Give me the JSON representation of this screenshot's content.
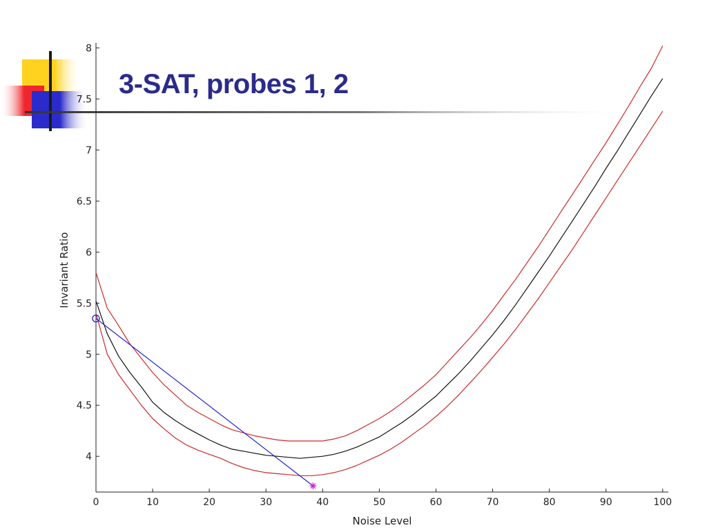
{
  "slide": {
    "title": "3-SAT, probes 1, 2",
    "accent_colors": {
      "title": "#2B2B8C",
      "decor_yellow": "#FFD21F",
      "decor_red": "#F0262E",
      "decor_blue": "#2B2BCC",
      "rule_line": "#5A5A5A"
    }
  },
  "chart_data": {
    "type": "line",
    "title": "",
    "xlabel": "Noise Level",
    "ylabel": "Invariant Ratio",
    "xlim": [
      0,
      101
    ],
    "ylim": [
      3.65,
      8.05
    ],
    "xticks": [
      0,
      10,
      20,
      30,
      40,
      50,
      60,
      70,
      80,
      90,
      100
    ],
    "yticks": [
      4,
      4.5,
      5,
      5.5,
      6,
      6.5,
      7,
      7.5,
      8
    ],
    "grid": false,
    "series": [
      {
        "color": "#cc2a2a",
        "style": "solid",
        "x": [
          0,
          2,
          4,
          6,
          8,
          10,
          12,
          14,
          16,
          18,
          20,
          22,
          24,
          26,
          28,
          30,
          32,
          34,
          36,
          38,
          40,
          42,
          44,
          46,
          48,
          50,
          52,
          54,
          56,
          58,
          60,
          62,
          64,
          66,
          68,
          70,
          72,
          74,
          76,
          78,
          80,
          82,
          84,
          86,
          88,
          90,
          92,
          94,
          96,
          98,
          100
        ],
        "y": [
          5.8,
          5.45,
          5.28,
          5.1,
          4.96,
          4.82,
          4.7,
          4.6,
          4.5,
          4.43,
          4.37,
          4.31,
          4.26,
          4.23,
          4.2,
          4.18,
          4.16,
          4.15,
          4.15,
          4.15,
          4.15,
          4.17,
          4.2,
          4.25,
          4.31,
          4.37,
          4.44,
          4.52,
          4.61,
          4.7,
          4.8,
          4.92,
          5.04,
          5.16,
          5.29,
          5.43,
          5.58,
          5.73,
          5.89,
          6.05,
          6.22,
          6.39,
          6.56,
          6.73,
          6.9,
          7.07,
          7.25,
          7.43,
          7.62,
          7.8,
          8.02
        ]
      },
      {
        "color": "#111111",
        "style": "solid",
        "x": [
          0,
          2,
          4,
          6,
          8,
          10,
          12,
          14,
          16,
          18,
          20,
          22,
          24,
          26,
          28,
          30,
          32,
          34,
          36,
          38,
          40,
          42,
          44,
          46,
          48,
          50,
          52,
          54,
          56,
          58,
          60,
          62,
          64,
          66,
          68,
          70,
          72,
          74,
          76,
          78,
          80,
          82,
          84,
          86,
          88,
          90,
          92,
          94,
          96,
          98,
          100
        ],
        "y": [
          5.52,
          5.2,
          4.98,
          4.82,
          4.68,
          4.53,
          4.43,
          4.35,
          4.28,
          4.22,
          4.16,
          4.11,
          4.07,
          4.05,
          4.03,
          4.01,
          4.0,
          3.99,
          3.98,
          3.99,
          4.0,
          4.02,
          4.05,
          4.09,
          4.14,
          4.19,
          4.26,
          4.33,
          4.41,
          4.5,
          4.59,
          4.7,
          4.81,
          4.93,
          5.06,
          5.19,
          5.33,
          5.48,
          5.64,
          5.8,
          5.96,
          6.13,
          6.3,
          6.47,
          6.64,
          6.82,
          6.99,
          7.17,
          7.35,
          7.53,
          7.7
        ]
      },
      {
        "color": "#cc2a2a",
        "style": "solid",
        "x": [
          0,
          2,
          4,
          6,
          8,
          10,
          12,
          14,
          16,
          18,
          20,
          22,
          24,
          26,
          28,
          30,
          32,
          34,
          36,
          38,
          40,
          42,
          44,
          46,
          48,
          50,
          52,
          54,
          56,
          58,
          60,
          62,
          64,
          66,
          68,
          70,
          72,
          74,
          76,
          78,
          80,
          82,
          84,
          86,
          88,
          90,
          92,
          94,
          96,
          98,
          100
        ],
        "y": [
          5.4,
          5.0,
          4.8,
          4.65,
          4.5,
          4.37,
          4.27,
          4.18,
          4.11,
          4.06,
          4.02,
          3.98,
          3.93,
          3.89,
          3.86,
          3.84,
          3.83,
          3.82,
          3.81,
          3.81,
          3.82,
          3.84,
          3.87,
          3.91,
          3.96,
          4.01,
          4.07,
          4.14,
          4.22,
          4.3,
          4.39,
          4.49,
          4.6,
          4.72,
          4.84,
          4.97,
          5.1,
          5.24,
          5.39,
          5.54,
          5.7,
          5.86,
          6.02,
          6.19,
          6.36,
          6.53,
          6.7,
          6.87,
          7.04,
          7.21,
          7.38
        ]
      },
      {
        "color": "#2222cc",
        "style": "solid",
        "x": [
          0,
          38.3
        ],
        "y": [
          5.35,
          3.71
        ]
      }
    ],
    "markers": [
      {
        "x": 0,
        "y": 5.35,
        "shape": "circle",
        "color": "#2222cc"
      },
      {
        "x": 38.3,
        "y": 3.71,
        "shape": "star",
        "color": "#cc22cc"
      }
    ]
  }
}
